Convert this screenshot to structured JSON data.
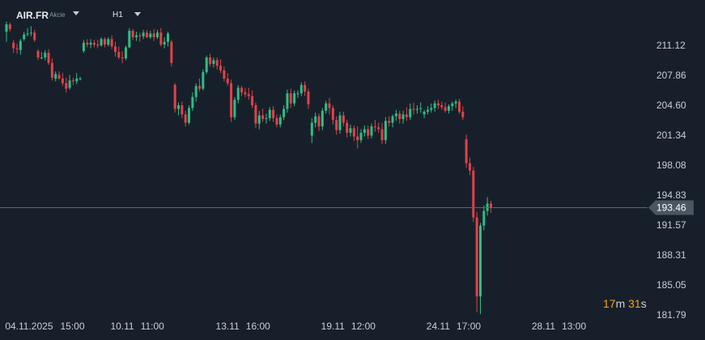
{
  "header": {
    "symbol": "AIR.FR",
    "instrument_type": "Akcie",
    "timeframe": "H1"
  },
  "timer": {
    "minutes": "17",
    "min_unit": "m",
    "seconds": "31",
    "sec_unit": "s"
  },
  "colors": {
    "background": "#17202a",
    "bull": "#2ebd85",
    "bear": "#e2414a",
    "text": "#c9ced6",
    "price_line": "#5a6875",
    "price_tag": "#4a5663"
  },
  "chart_data": {
    "type": "candlestick",
    "timeframe": "H1",
    "ylim": [
      181.0,
      213.5
    ],
    "y_ticks": [
      "211.12",
      "207.86",
      "204.60",
      "201.34",
      "198.08",
      "194.83",
      "191.57",
      "188.31",
      "185.05",
      "181.79"
    ],
    "x_ticks": [
      {
        "label": "04.11.2025",
        "time": "15:00",
        "index": 1
      },
      {
        "label": "10.11",
        "time": "11:00",
        "index": 31
      },
      {
        "label": "13.11",
        "time": "16:00",
        "index": 61
      },
      {
        "label": "19.11",
        "time": "12:00",
        "index": 91
      },
      {
        "label": "24.11",
        "time": "17:00",
        "index": 121
      },
      {
        "label": "28.11",
        "time": "13:00",
        "index": 151
      }
    ],
    "current_price": "193.46",
    "candles": [
      [
        212.6,
        213.7,
        211.5,
        213.4
      ],
      [
        213.4,
        213.6,
        212.6,
        212.9
      ],
      [
        211.4,
        211.7,
        210.3,
        210.8
      ],
      [
        210.8,
        211.3,
        210.2,
        210.7
      ],
      [
        210.6,
        211.8,
        210.1,
        211.6
      ],
      [
        211.8,
        212.6,
        211.6,
        212.3
      ],
      [
        212.3,
        213.0,
        212.1,
        212.4
      ],
      [
        212.5,
        213.2,
        212.1,
        212.5
      ],
      [
        212.5,
        212.8,
        211.5,
        211.7
      ],
      [
        210.5,
        210.7,
        209.5,
        209.8
      ],
      [
        209.8,
        210.4,
        209.6,
        209.8
      ],
      [
        209.8,
        210.6,
        209.5,
        210.3
      ],
      [
        210.3,
        210.7,
        209.0,
        209.2
      ],
      [
        209.2,
        209.7,
        207.3,
        207.6
      ],
      [
        207.5,
        208.3,
        207.2,
        208.0
      ],
      [
        207.9,
        208.3,
        207.4,
        207.5
      ],
      [
        207.5,
        208.1,
        206.7,
        207.0
      ],
      [
        207.0,
        207.6,
        206.0,
        206.4
      ],
      [
        206.5,
        207.9,
        206.3,
        207.3
      ],
      [
        207.3,
        207.6,
        206.8,
        207.2
      ],
      [
        207.2,
        208.1,
        206.9,
        207.5
      ],
      [
        207.5,
        207.7,
        207.3,
        207.5
      ],
      [
        210.5,
        211.7,
        210.3,
        211.4
      ],
      [
        211.4,
        211.8,
        210.9,
        211.2
      ],
      [
        211.2,
        211.8,
        210.8,
        211.4
      ],
      [
        211.4,
        211.7,
        210.9,
        211.2
      ],
      [
        211.2,
        211.7,
        210.8,
        211.1
      ],
      [
        211.1,
        212.0,
        211.0,
        211.8
      ],
      [
        211.8,
        212.0,
        210.9,
        211.2
      ],
      [
        211.2,
        212.0,
        211.0,
        211.8
      ],
      [
        211.8,
        212.2,
        210.7,
        211.0
      ],
      [
        211.0,
        211.5,
        209.9,
        210.4
      ],
      [
        210.4,
        211.0,
        209.6,
        209.8
      ],
      [
        209.8,
        210.5,
        209.2,
        209.7
      ],
      [
        209.7,
        211.1,
        209.5,
        210.9
      ],
      [
        210.9,
        213.0,
        210.8,
        212.7
      ],
      [
        212.7,
        212.9,
        211.7,
        212.0
      ],
      [
        212.0,
        212.6,
        211.6,
        212.2
      ],
      [
        212.2,
        212.5,
        211.5,
        212.1
      ],
      [
        212.1,
        212.8,
        211.8,
        212.5
      ],
      [
        212.5,
        212.8,
        211.9,
        212.0
      ],
      [
        212.0,
        212.7,
        211.8,
        212.4
      ],
      [
        212.4,
        212.9,
        211.6,
        212.0
      ],
      [
        212.0,
        212.8,
        211.8,
        212.5
      ],
      [
        212.5,
        213.0,
        211.0,
        211.2
      ],
      [
        211.2,
        212.0,
        210.8,
        211.5
      ],
      [
        211.5,
        212.6,
        211.0,
        212.4
      ],
      [
        211.5,
        211.7,
        208.8,
        209.2
      ],
      [
        206.8,
        207.0,
        203.8,
        204.2
      ],
      [
        204.2,
        204.9,
        203.5,
        204.6
      ],
      [
        204.6,
        205.0,
        203.2,
        203.6
      ],
      [
        203.6,
        204.0,
        202.3,
        202.7
      ],
      [
        202.7,
        204.6,
        202.5,
        204.3
      ],
      [
        204.3,
        206.0,
        204.0,
        205.5
      ],
      [
        205.5,
        207.0,
        205.0,
        206.7
      ],
      [
        206.7,
        207.5,
        206.1,
        206.4
      ],
      [
        206.4,
        208.5,
        206.2,
        208.2
      ],
      [
        208.2,
        210.0,
        208.0,
        209.8
      ],
      [
        209.8,
        210.2,
        208.8,
        209.1
      ],
      [
        209.1,
        209.8,
        208.7,
        209.5
      ],
      [
        209.5,
        209.8,
        208.5,
        208.9
      ],
      [
        208.9,
        209.6,
        208.1,
        208.4
      ],
      [
        208.4,
        208.8,
        207.2,
        207.5
      ],
      [
        207.5,
        208.1,
        206.7,
        207.0
      ],
      [
        207.0,
        207.4,
        202.8,
        203.3
      ],
      [
        203.3,
        205.5,
        203.0,
        205.2
      ],
      [
        205.2,
        206.8,
        204.8,
        206.5
      ],
      [
        206.5,
        206.7,
        205.6,
        206.0
      ],
      [
        206.0,
        206.5,
        205.5,
        205.8
      ],
      [
        205.8,
        206.5,
        205.2,
        205.6
      ],
      [
        205.6,
        206.2,
        204.3,
        204.6
      ],
      [
        204.6,
        204.9,
        202.1,
        202.6
      ],
      [
        202.6,
        204.0,
        202.0,
        203.5
      ],
      [
        203.5,
        204.2,
        202.8,
        203.1
      ],
      [
        203.1,
        203.7,
        202.6,
        203.2
      ],
      [
        203.2,
        204.4,
        202.9,
        204.1
      ],
      [
        204.1,
        204.5,
        202.8,
        203.2
      ],
      [
        203.2,
        203.6,
        202.2,
        202.5
      ],
      [
        202.5,
        203.6,
        202.2,
        203.3
      ],
      [
        203.3,
        204.6,
        203.0,
        204.2
      ],
      [
        204.2,
        206.3,
        203.8,
        205.9
      ],
      [
        205.9,
        206.4,
        204.3,
        204.8
      ],
      [
        204.8,
        206.2,
        204.5,
        205.9
      ],
      [
        205.9,
        206.2,
        205.4,
        205.9
      ],
      [
        205.9,
        207.1,
        205.6,
        206.8
      ],
      [
        206.8,
        207.2,
        205.6,
        206.1
      ],
      [
        206.1,
        206.4,
        204.2,
        204.7
      ],
      [
        201.3,
        203.2,
        200.5,
        202.7
      ],
      [
        202.7,
        203.8,
        202.2,
        203.4
      ],
      [
        203.4,
        203.7,
        201.8,
        202.3
      ],
      [
        202.3,
        204.3,
        201.9,
        204.0
      ],
      [
        204.0,
        205.1,
        203.7,
        204.8
      ],
      [
        204.8,
        205.4,
        203.6,
        204.3
      ],
      [
        204.3,
        204.6,
        202.5,
        203.0
      ],
      [
        203.0,
        203.4,
        201.4,
        201.9
      ],
      [
        201.9,
        203.9,
        201.5,
        203.5
      ],
      [
        203.5,
        203.9,
        202.3,
        202.7
      ],
      [
        202.7,
        203.0,
        201.1,
        201.6
      ],
      [
        201.6,
        202.5,
        201.2,
        202.1
      ],
      [
        202.1,
        202.4,
        200.7,
        201.2
      ],
      [
        201.2,
        202.3,
        199.9,
        200.8
      ],
      [
        200.8,
        202.0,
        200.5,
        201.6
      ],
      [
        201.6,
        202.4,
        201.2,
        202.0
      ],
      [
        202.0,
        202.4,
        200.9,
        201.3
      ],
      [
        201.3,
        202.6,
        201.0,
        202.3
      ],
      [
        202.3,
        203.0,
        201.7,
        202.2
      ],
      [
        202.2,
        202.7,
        201.6,
        202.0
      ],
      [
        202.0,
        202.7,
        200.4,
        200.8
      ],
      [
        200.8,
        203.3,
        200.4,
        202.9
      ],
      [
        202.9,
        203.4,
        202.3,
        202.7
      ],
      [
        202.7,
        203.6,
        202.2,
        203.4
      ],
      [
        203.4,
        204.1,
        202.9,
        203.7
      ],
      [
        203.7,
        204.0,
        202.6,
        203.1
      ],
      [
        203.1,
        204.0,
        202.6,
        203.6
      ],
      [
        203.6,
        204.4,
        202.9,
        203.3
      ],
      [
        203.3,
        204.8,
        203.0,
        204.2
      ],
      [
        204.2,
        204.9,
        203.6,
        204.1
      ],
      [
        204.1,
        204.6,
        203.7,
        204.2
      ],
      [
        204.2,
        204.9,
        203.8,
        204.3
      ],
      [
        203.6,
        204.1,
        203.2,
        203.9
      ],
      [
        203.9,
        204.5,
        203.6,
        204.1
      ],
      [
        204.1,
        204.8,
        203.8,
        204.3
      ],
      [
        204.3,
        205.1,
        203.9,
        204.8
      ],
      [
        204.8,
        205.2,
        204.2,
        204.6
      ],
      [
        204.6,
        205.0,
        204.1,
        204.4
      ],
      [
        204.4,
        204.9,
        203.8,
        204.0
      ],
      [
        204.0,
        204.7,
        203.7,
        204.5
      ],
      [
        204.5,
        205.0,
        204.0,
        204.8
      ],
      [
        204.8,
        205.2,
        204.3,
        205.0
      ],
      [
        205.0,
        205.3,
        203.7,
        203.9
      ],
      [
        203.9,
        204.5,
        203.0,
        203.3
      ],
      [
        200.9,
        201.4,
        197.8,
        198.3
      ],
      [
        198.3,
        198.9,
        197.0,
        197.5
      ],
      [
        197.5,
        197.9,
        191.9,
        192.4
      ],
      [
        192.4,
        193.0,
        182.1,
        183.8
      ],
      [
        183.8,
        191.8,
        181.9,
        191.5
      ],
      [
        191.5,
        193.7,
        191.0,
        193.1
      ],
      [
        193.1,
        194.6,
        192.6,
        193.9
      ],
      [
        193.9,
        194.2,
        192.9,
        193.46
      ]
    ]
  }
}
